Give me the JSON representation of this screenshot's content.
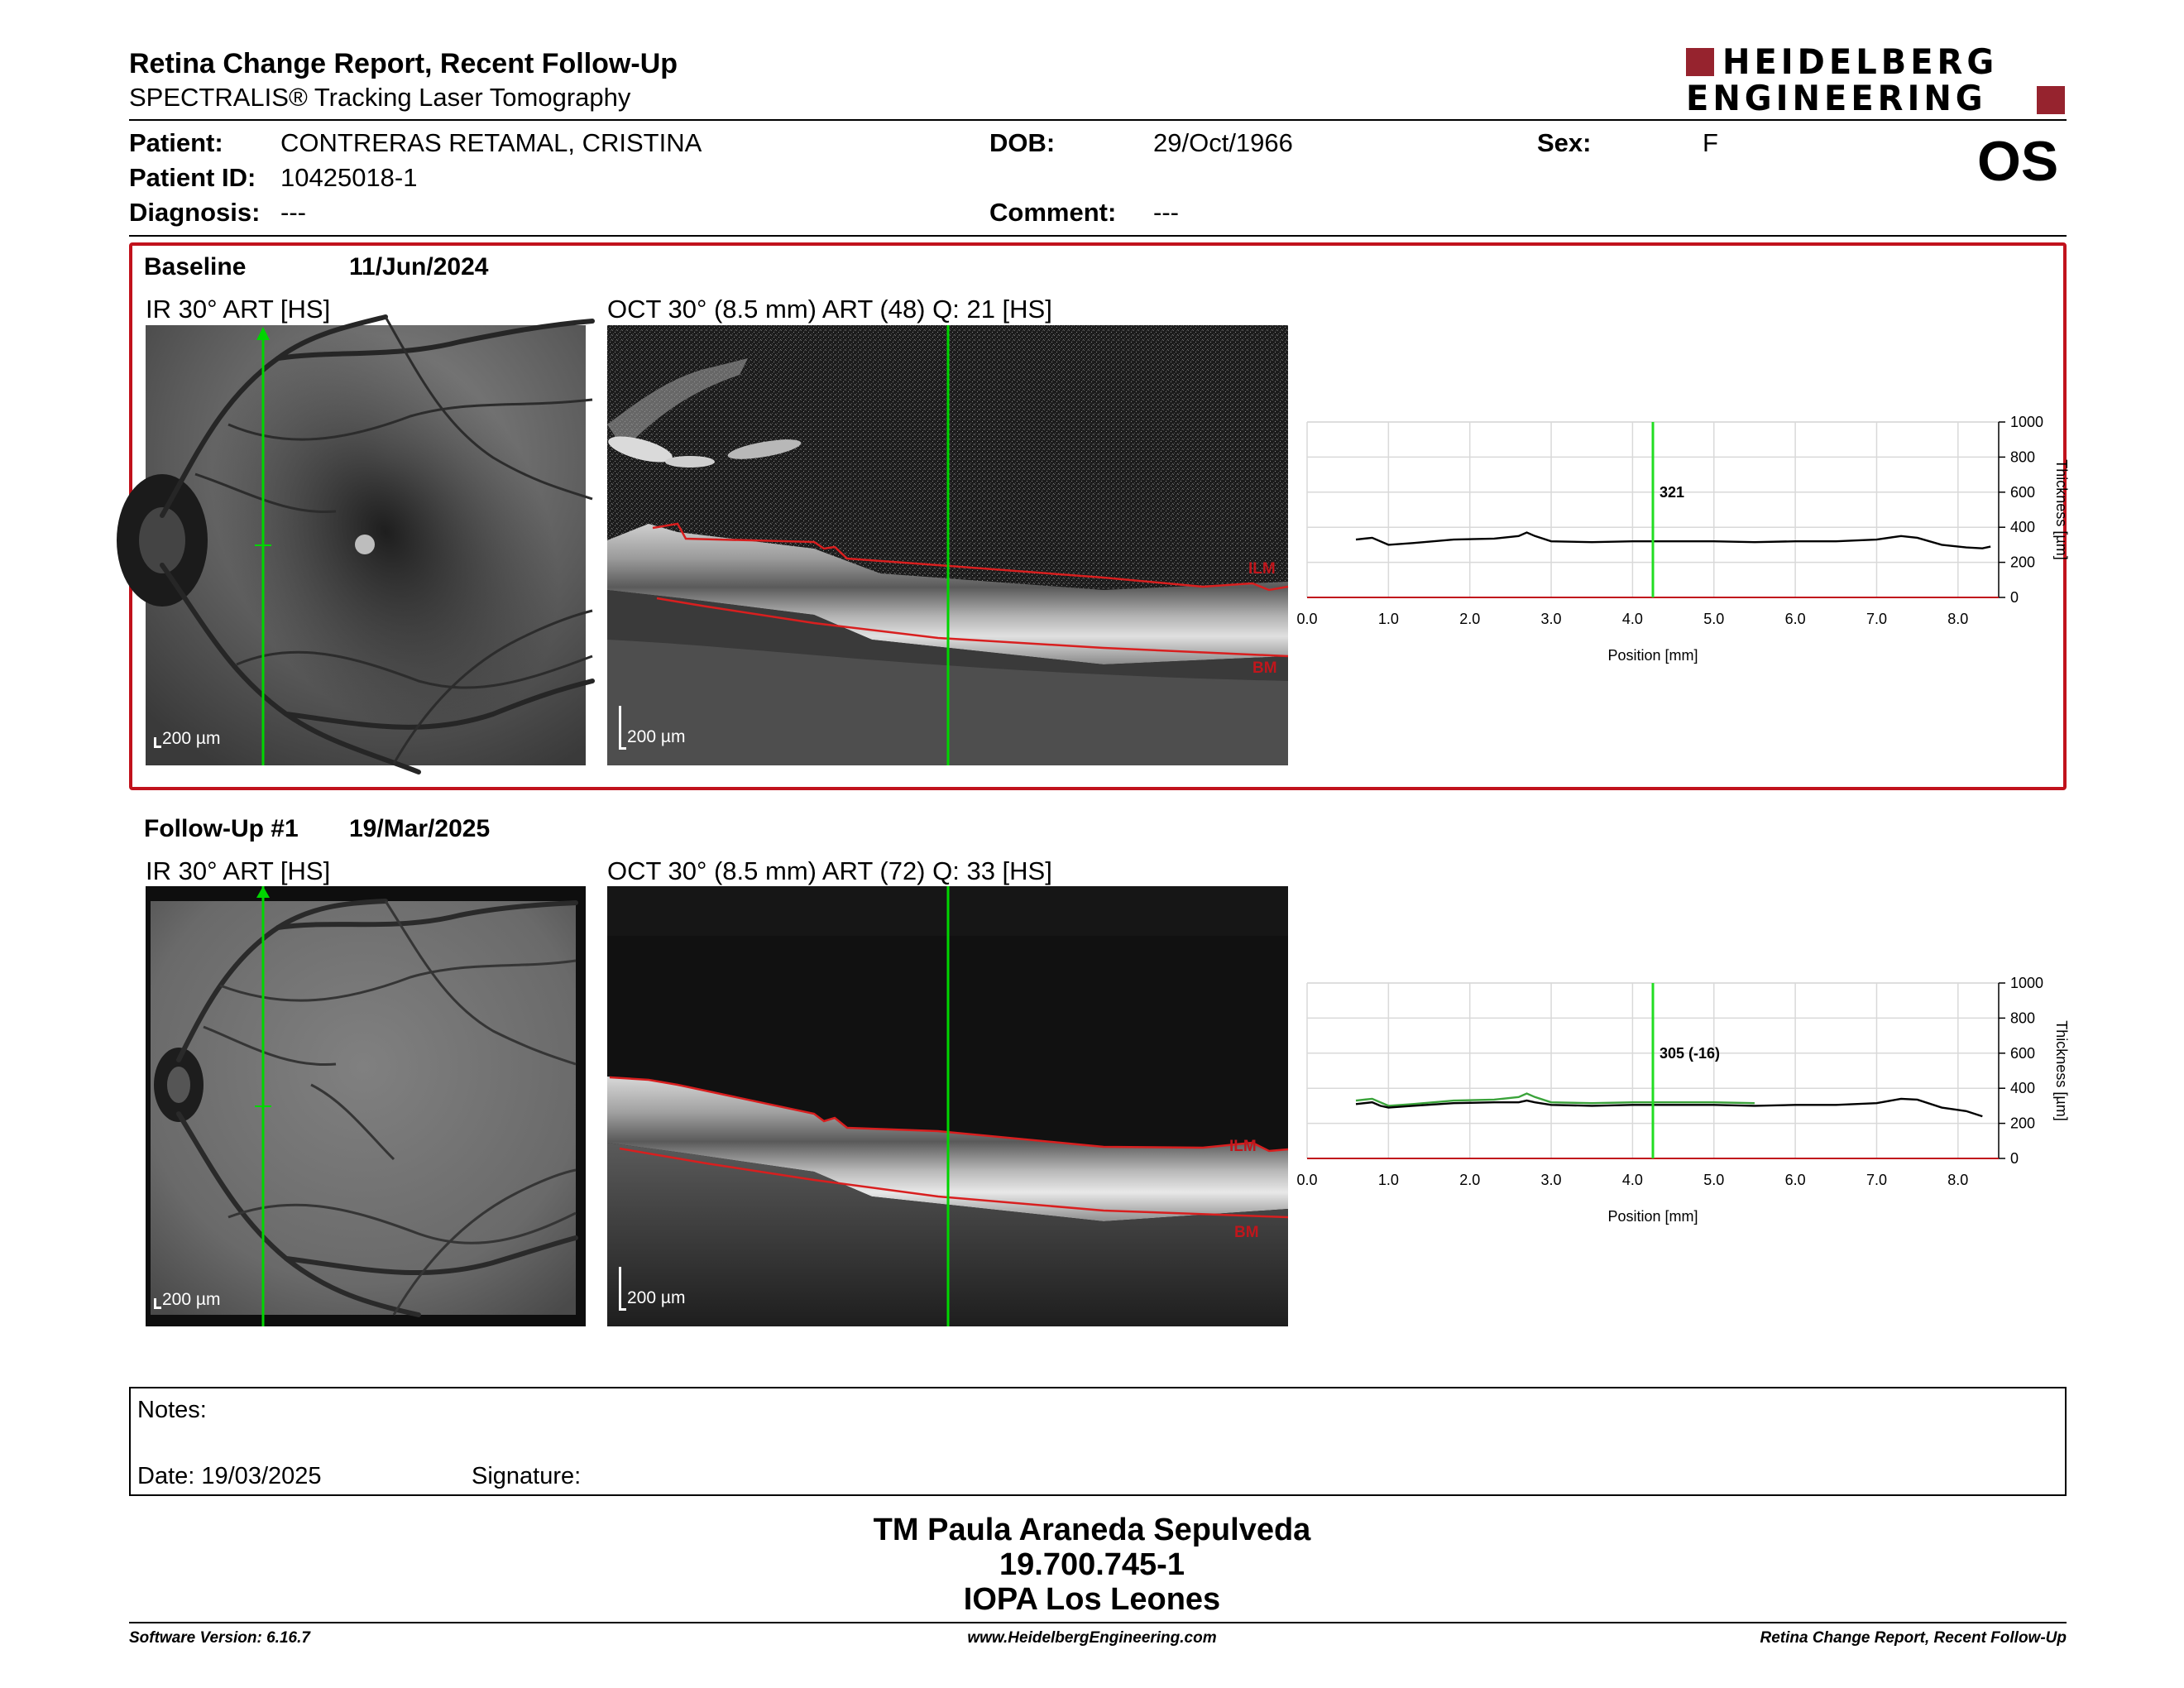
{
  "header": {
    "title": "Retina Change Report, Recent Follow-Up",
    "subtitle": "SPECTRALIS® Tracking Laser Tomography",
    "logo_line1": "HEIDELBERG",
    "logo_line2": "ENGINEERING",
    "eye": "OS"
  },
  "patient": {
    "patient_label": "Patient:",
    "patient_value": "CONTRERAS RETAMAL, CRISTINA",
    "id_label": "Patient ID:",
    "id_value": "10425018-1",
    "diagnosis_label": "Diagnosis:",
    "diagnosis_value": "---",
    "dob_label": "DOB:",
    "dob_value": "29/Oct/1966",
    "comment_label": "Comment:",
    "comment_value": "---",
    "sex_label": "Sex:",
    "sex_value": "F"
  },
  "baseline": {
    "label": "Baseline",
    "date": "11/Jun/2024",
    "ir_title": "IR 30° ART [HS]",
    "oct_title": "OCT 30° (8.5 mm) ART (48) Q: 21 [HS]",
    "scale": "200 µm",
    "ilm": "ILM",
    "bm": "BM"
  },
  "followup": {
    "label": "Follow-Up #1",
    "date": "19/Mar/2025",
    "ir_title": "IR 30° ART [HS]",
    "oct_title": "OCT 30° (8.5 mm) ART (72) Q: 33 [HS]",
    "scale": "200 µm",
    "ilm": "ILM",
    "bm": "BM"
  },
  "chart_data": [
    {
      "type": "line",
      "xlabel": "Position [mm]",
      "ylabel": "Thickness [µm]",
      "x_ticks": [
        "0.0",
        "1.0",
        "2.0",
        "3.0",
        "4.0",
        "5.0",
        "6.0",
        "7.0",
        "8.0"
      ],
      "y_ticks": [
        "0",
        "200",
        "400",
        "600",
        "800",
        "1000"
      ],
      "xlim": [
        0,
        8.5
      ],
      "ylim": [
        0,
        1000
      ],
      "marker_x": 4.25,
      "marker_label": "321",
      "grid": true,
      "series": [
        {
          "color": "#000000",
          "x": [
            0.6,
            0.8,
            1.0,
            1.3,
            1.8,
            2.3,
            2.6,
            2.7,
            2.8,
            3.0,
            3.5,
            4.0,
            4.5,
            5.0,
            5.5,
            6.0,
            6.5,
            7.0,
            7.3,
            7.5,
            7.8,
            8.1,
            8.3,
            8.4
          ],
          "values": [
            330,
            340,
            300,
            310,
            330,
            335,
            350,
            370,
            350,
            320,
            315,
            320,
            320,
            320,
            315,
            320,
            320,
            330,
            350,
            340,
            300,
            285,
            280,
            290
          ]
        }
      ]
    },
    {
      "type": "line",
      "xlabel": "Position [mm]",
      "ylabel": "Thickness [µm]",
      "x_ticks": [
        "0.0",
        "1.0",
        "2.0",
        "3.0",
        "4.0",
        "5.0",
        "6.0",
        "7.0",
        "8.0"
      ],
      "y_ticks": [
        "0",
        "200",
        "400",
        "600",
        "800",
        "1000"
      ],
      "xlim": [
        0,
        8.5
      ],
      "ylim": [
        0,
        1000
      ],
      "marker_x": 4.25,
      "marker_label": "305 (-16)",
      "grid": true,
      "series": [
        {
          "color": "#3aa33a",
          "x": [
            0.6,
            0.8,
            1.0,
            1.3,
            1.8,
            2.3,
            2.6,
            2.7,
            2.8,
            3.0,
            3.5,
            4.0,
            4.5,
            5.0,
            5.5
          ],
          "values": [
            330,
            340,
            300,
            310,
            330,
            335,
            350,
            370,
            350,
            320,
            315,
            320,
            320,
            320,
            315
          ]
        },
        {
          "color": "#000000",
          "x": [
            0.6,
            0.8,
            0.9,
            1.0,
            1.3,
            1.8,
            2.3,
            2.6,
            2.7,
            2.8,
            3.0,
            3.5,
            4.0,
            4.5,
            5.0,
            5.5,
            6.0,
            6.5,
            7.0,
            7.3,
            7.5,
            7.8,
            8.1,
            8.3
          ],
          "values": [
            310,
            320,
            300,
            290,
            300,
            315,
            320,
            320,
            330,
            320,
            305,
            300,
            305,
            305,
            305,
            300,
            305,
            305,
            315,
            340,
            335,
            290,
            270,
            240
          ]
        }
      ]
    }
  ],
  "notes": {
    "notes_label": "Notes:",
    "date_label": "Date: 19/03/2025",
    "signature_label": "Signature:"
  },
  "signature_block": {
    "name": "TM Paula Araneda Sepulveda",
    "rut": "19.700.745-1",
    "institution": "IOPA Los Leones"
  },
  "footer": {
    "software": "Software Version: 6.16.7",
    "website": "www.HeidelbergEngineering.com",
    "report": "Retina Change Report, Recent Follow-Up"
  }
}
